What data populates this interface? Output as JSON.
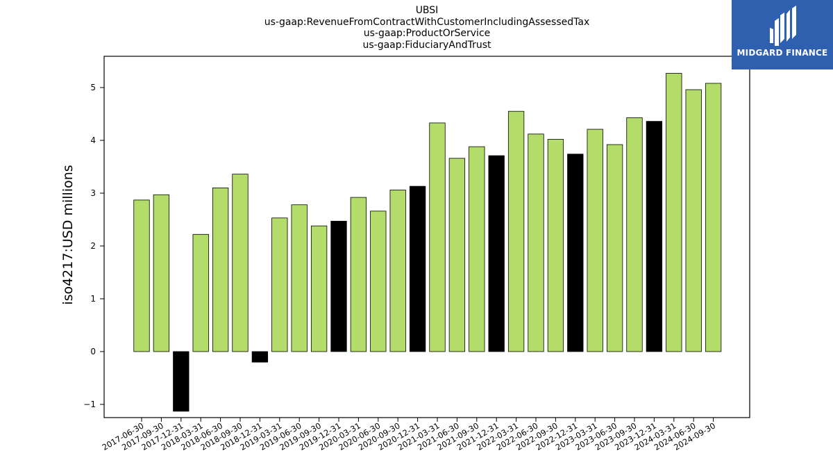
{
  "chart_data": {
    "type": "bar",
    "title": [
      "UBSI",
      "us-gaap:RevenueFromContractWithCustomerIncludingAssessedTax",
      "us-gaap:ProductOrService",
      "us-gaap:FiduciaryAndTrust"
    ],
    "ylabel": "iso4217:USD  millions",
    "xlabel": "",
    "ylim": [
      -1.25,
      5.6
    ],
    "yticks": [
      -1,
      0,
      1,
      2,
      3,
      4,
      5
    ],
    "categories": [
      "2017-06-30",
      "2017-09-30",
      "2017-12-31",
      "2018-03-31",
      "2018-06-30",
      "2018-09-30",
      "2018-12-31",
      "2019-03-31",
      "2019-06-30",
      "2019-09-30",
      "2019-12-31",
      "2020-03-31",
      "2020-06-30",
      "2020-09-30",
      "2020-12-31",
      "2021-03-31",
      "2021-06-30",
      "2021-09-30",
      "2021-12-31",
      "2022-03-31",
      "2022-06-30",
      "2022-09-30",
      "2022-12-31",
      "2023-03-31",
      "2023-06-30",
      "2023-09-30",
      "2023-12-31",
      "2024-03-31",
      "2024-06-30",
      "2024-09-30"
    ],
    "values": [
      2.87,
      2.97,
      -1.13,
      2.22,
      3.1,
      3.36,
      -0.2,
      2.53,
      2.78,
      2.38,
      2.47,
      2.92,
      2.66,
      3.06,
      3.13,
      4.33,
      3.66,
      3.88,
      3.71,
      4.55,
      4.12,
      4.02,
      3.74,
      4.21,
      3.92,
      4.43,
      4.36,
      5.27,
      4.96,
      5.08
    ],
    "highlighted": [
      2,
      6,
      10,
      14,
      18,
      22,
      26
    ],
    "colors": {
      "bar": "#b3dc6a",
      "highlight": "#000000",
      "edge": "#000000"
    },
    "grid": false,
    "legend": "none"
  },
  "logo": {
    "text": "MIDGARD FINANCE",
    "background": "#2f5faf"
  }
}
